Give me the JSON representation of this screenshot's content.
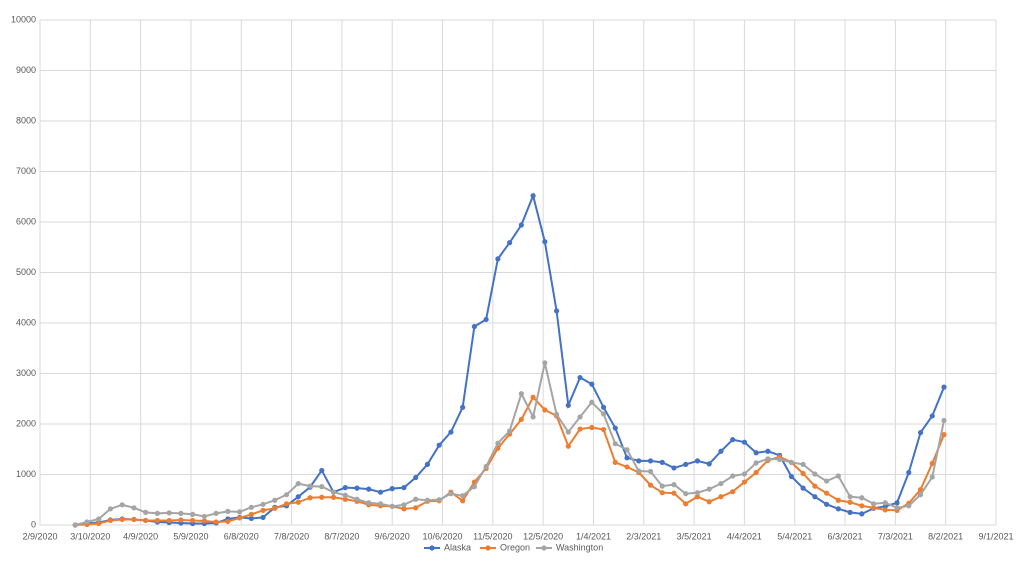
{
  "chart_data": {
    "type": "line",
    "x": [
      "3/1/2020",
      "3/8/2020",
      "3/15/2020",
      "3/22/2020",
      "3/29/2020",
      "4/5/2020",
      "4/12/2020",
      "4/19/2020",
      "4/26/2020",
      "5/3/2020",
      "5/10/2020",
      "5/17/2020",
      "5/24/2020",
      "5/31/2020",
      "6/7/2020",
      "6/14/2020",
      "6/21/2020",
      "6/28/2020",
      "7/5/2020",
      "7/12/2020",
      "7/19/2020",
      "7/26/2020",
      "8/2/2020",
      "8/9/2020",
      "8/16/2020",
      "8/23/2020",
      "8/30/2020",
      "9/6/2020",
      "9/13/2020",
      "9/20/2020",
      "9/27/2020",
      "10/4/2020",
      "10/11/2020",
      "10/18/2020",
      "10/25/2020",
      "11/1/2020",
      "11/8/2020",
      "11/15/2020",
      "11/22/2020",
      "11/29/2020",
      "12/6/2020",
      "12/13/2020",
      "12/20/2020",
      "12/27/2020",
      "1/3/2021",
      "1/10/2021",
      "1/17/2021",
      "1/24/2021",
      "1/31/2021",
      "2/7/2021",
      "2/14/2021",
      "2/21/2021",
      "2/28/2021",
      "3/7/2021",
      "3/14/2021",
      "3/21/2021",
      "3/28/2021",
      "4/4/2021",
      "4/11/2021",
      "4/18/2021",
      "4/25/2021",
      "5/2/2021",
      "5/9/2021",
      "5/16/2021",
      "5/23/2021",
      "5/30/2021",
      "6/6/2021",
      "6/13/2021",
      "6/20/2021",
      "6/27/2021",
      "7/4/2021",
      "7/11/2021",
      "7/18/2021",
      "7/25/2021",
      "8/1/2021"
    ],
    "series": [
      {
        "name": "Alaska",
        "color": "#4472c4",
        "values": [
          0,
          30,
          50,
          100,
          120,
          110,
          90,
          60,
          50,
          40,
          30,
          30,
          40,
          120,
          150,
          130,
          150,
          350,
          380,
          560,
          750,
          1080,
          650,
          740,
          730,
          710,
          650,
          720,
          740,
          940,
          1200,
          1580,
          1840,
          2330,
          3930,
          4070,
          5270,
          5590,
          5940,
          6520,
          5610,
          4240,
          2370,
          2920,
          2790,
          2330,
          1920,
          1330,
          1270,
          1270,
          1240,
          1130,
          1200,
          1270,
          1210,
          1460,
          1690,
          1640,
          1430,
          1460,
          1380,
          960,
          730,
          560,
          410,
          320,
          250,
          220,
          330,
          370,
          440,
          1040,
          1830,
          2160,
          2730
        ]
      },
      {
        "name": "Oregon",
        "color": "#ed7d31",
        "values": [
          0,
          10,
          30,
          90,
          110,
          110,
          90,
          90,
          90,
          100,
          90,
          80,
          60,
          70,
          140,
          210,
          290,
          330,
          420,
          450,
          540,
          550,
          550,
          510,
          470,
          400,
          380,
          370,
          320,
          340,
          470,
          480,
          650,
          480,
          850,
          1120,
          1520,
          1800,
          2090,
          2530,
          2280,
          2160,
          1560,
          1900,
          1930,
          1890,
          1240,
          1150,
          1040,
          790,
          640,
          630,
          420,
          560,
          460,
          560,
          660,
          850,
          1040,
          1280,
          1350,
          1240,
          1020,
          770,
          630,
          490,
          450,
          380,
          340,
          300,
          290,
          430,
          700,
          1220,
          1790
        ]
      },
      {
        "name": "Washington",
        "color": "#a5a5a5",
        "values": [
          0,
          60,
          120,
          320,
          400,
          340,
          250,
          230,
          240,
          230,
          210,
          170,
          230,
          270,
          260,
          350,
          410,
          490,
          600,
          820,
          770,
          760,
          650,
          590,
          510,
          440,
          420,
          370,
          400,
          510,
          490,
          500,
          620,
          580,
          760,
          1160,
          1620,
          1860,
          2600,
          2140,
          3210,
          2190,
          1840,
          2140,
          2430,
          2200,
          1610,
          1490,
          1070,
          1060,
          770,
          800,
          620,
          640,
          710,
          820,
          970,
          1010,
          1230,
          1310,
          1300,
          1240,
          1200,
          1010,
          870,
          970,
          560,
          540,
          420,
          440,
          340,
          380,
          600,
          950,
          2070
        ]
      }
    ],
    "xlim": [
      "2/9/2020",
      "9/1/2021"
    ],
    "xticks": [
      "2/9/2020",
      "3/10/2020",
      "4/9/2020",
      "5/9/2020",
      "6/8/2020",
      "7/8/2020",
      "8/7/2020",
      "9/6/2020",
      "10/6/2020",
      "11/5/2020",
      "12/5/2020",
      "1/4/2021",
      "2/3/2021",
      "3/5/2021",
      "4/4/2021",
      "5/4/2021",
      "6/3/2021",
      "7/3/2021",
      "8/2/2021",
      "9/1/2021"
    ],
    "ylim": [
      0,
      10000
    ],
    "yticks": [
      0,
      1000,
      2000,
      3000,
      4000,
      5000,
      6000,
      7000,
      8000,
      9000,
      10000
    ],
    "grid": true,
    "legend": "bottom"
  }
}
